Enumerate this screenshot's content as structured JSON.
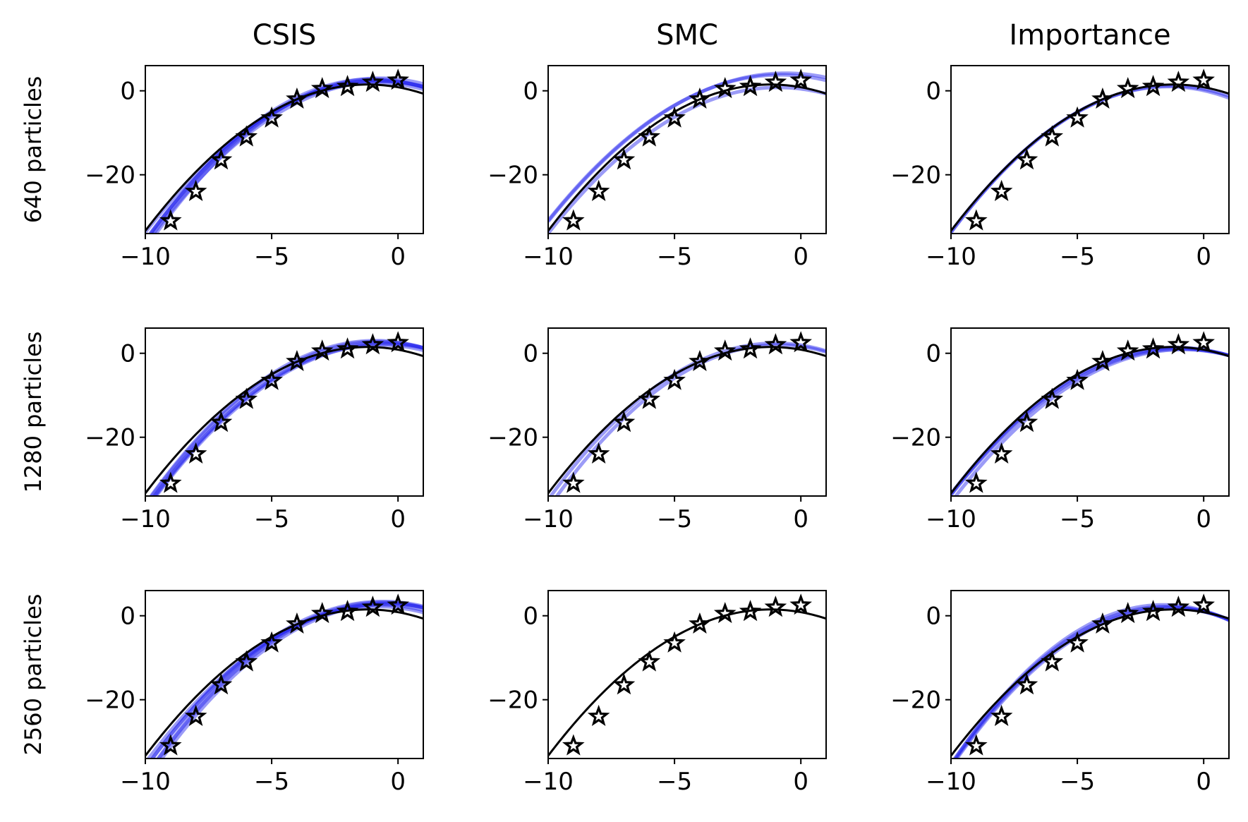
{
  "figure": {
    "columns": [
      "CSIS",
      "SMC",
      "Importance"
    ],
    "rows": [
      "640 particles",
      "1280 particles",
      "2560 particles"
    ]
  },
  "colors": {
    "truth": "#000000",
    "posterior": "#2222ee"
  },
  "chart_data": {
    "type": "line",
    "layout": "3x3 grid, rows share y ticks, columns share x ticks",
    "xlim": [
      -10,
      1
    ],
    "ylim": [
      -34,
      6
    ],
    "xticks": [
      -10,
      -5,
      0
    ],
    "xtick_labels": [
      "−10",
      "−5",
      "0"
    ],
    "yticks": [
      -20,
      0
    ],
    "ytick_labels": [
      "−20",
      "0"
    ],
    "observations": {
      "x": [
        -9,
        -8,
        -7,
        -6,
        -5,
        -4,
        -3,
        -2,
        -1,
        0
      ],
      "y": [
        -31,
        -24,
        -16.5,
        -11,
        -6.5,
        -2,
        0.5,
        1,
        2,
        2.5
      ]
    },
    "truth_curve": {
      "form": "a*(x-h)^2 + k",
      "a": -0.45,
      "h": -1.2,
      "k": 1.5
    },
    "panels": [
      {
        "row": "640 particles",
        "col": "CSIS",
        "posterior_samples": [
          {
            "a": -0.46,
            "h": -0.9,
            "k": 2.5
          },
          {
            "a": -0.44,
            "h": -0.6,
            "k": 2.2
          },
          {
            "a": -0.48,
            "h": -1.0,
            "k": 2.8
          },
          {
            "a": -0.45,
            "h": -0.8,
            "k": 2.4
          },
          {
            "a": -0.47,
            "h": -0.7,
            "k": 3.0
          },
          {
            "a": -0.43,
            "h": -0.9,
            "k": 1.9
          }
        ]
      },
      {
        "row": "640 particles",
        "col": "SMC",
        "posterior_samples": [
          {
            "a": -0.4,
            "h": -0.6,
            "k": 4.2
          },
          {
            "a": -0.42,
            "h": -0.9,
            "k": 0.8
          },
          {
            "a": -0.41,
            "h": -0.8,
            "k": 3.8
          }
        ]
      },
      {
        "row": "640 particles",
        "col": "Importance",
        "posterior_samples": [
          {
            "a": -0.47,
            "h": -1.4,
            "k": 1.0
          },
          {
            "a": -0.46,
            "h": -1.3,
            "k": 1.2
          }
        ]
      },
      {
        "row": "1280 particles",
        "col": "CSIS",
        "posterior_samples": [
          {
            "a": -0.45,
            "h": -0.6,
            "k": 2.5
          },
          {
            "a": -0.46,
            "h": -0.8,
            "k": 2.8
          },
          {
            "a": -0.44,
            "h": -0.5,
            "k": 2.2
          },
          {
            "a": -0.47,
            "h": -0.9,
            "k": 3.0
          },
          {
            "a": -0.45,
            "h": -0.7,
            "k": 2.0
          }
        ]
      },
      {
        "row": "1280 particles",
        "col": "SMC",
        "posterior_samples": [
          {
            "a": -0.47,
            "h": -0.9,
            "k": 2.0
          },
          {
            "a": -0.46,
            "h": -1.0,
            "k": 2.4
          }
        ]
      },
      {
        "row": "1280 particles",
        "col": "Importance",
        "posterior_samples": [
          {
            "a": -0.43,
            "h": -1.0,
            "k": 1.2
          },
          {
            "a": -0.42,
            "h": -0.9,
            "k": 1.0
          },
          {
            "a": -0.44,
            "h": -1.1,
            "k": 1.4
          },
          {
            "a": -0.43,
            "h": -0.8,
            "k": 0.9
          }
        ]
      },
      {
        "row": "2560 particles",
        "col": "CSIS",
        "posterior_samples": [
          {
            "a": -0.46,
            "h": -0.5,
            "k": 3.0
          },
          {
            "a": -0.45,
            "h": -0.7,
            "k": 2.6
          },
          {
            "a": -0.47,
            "h": -0.6,
            "k": 3.2
          },
          {
            "a": -0.44,
            "h": -0.8,
            "k": 2.2
          },
          {
            "a": -0.46,
            "h": -0.4,
            "k": 2.8
          },
          {
            "a": -0.45,
            "h": -0.6,
            "k": 3.4
          }
        ]
      },
      {
        "row": "2560 particles",
        "col": "SMC",
        "posterior_samples": []
      },
      {
        "row": "2560 particles",
        "col": "Importance",
        "posterior_samples": [
          {
            "a": -0.52,
            "h": -1.5,
            "k": 2.2
          },
          {
            "a": -0.5,
            "h": -1.3,
            "k": 1.8
          },
          {
            "a": -0.54,
            "h": -1.6,
            "k": 2.6
          },
          {
            "a": -0.51,
            "h": -1.4,
            "k": 2.0
          }
        ]
      }
    ]
  }
}
